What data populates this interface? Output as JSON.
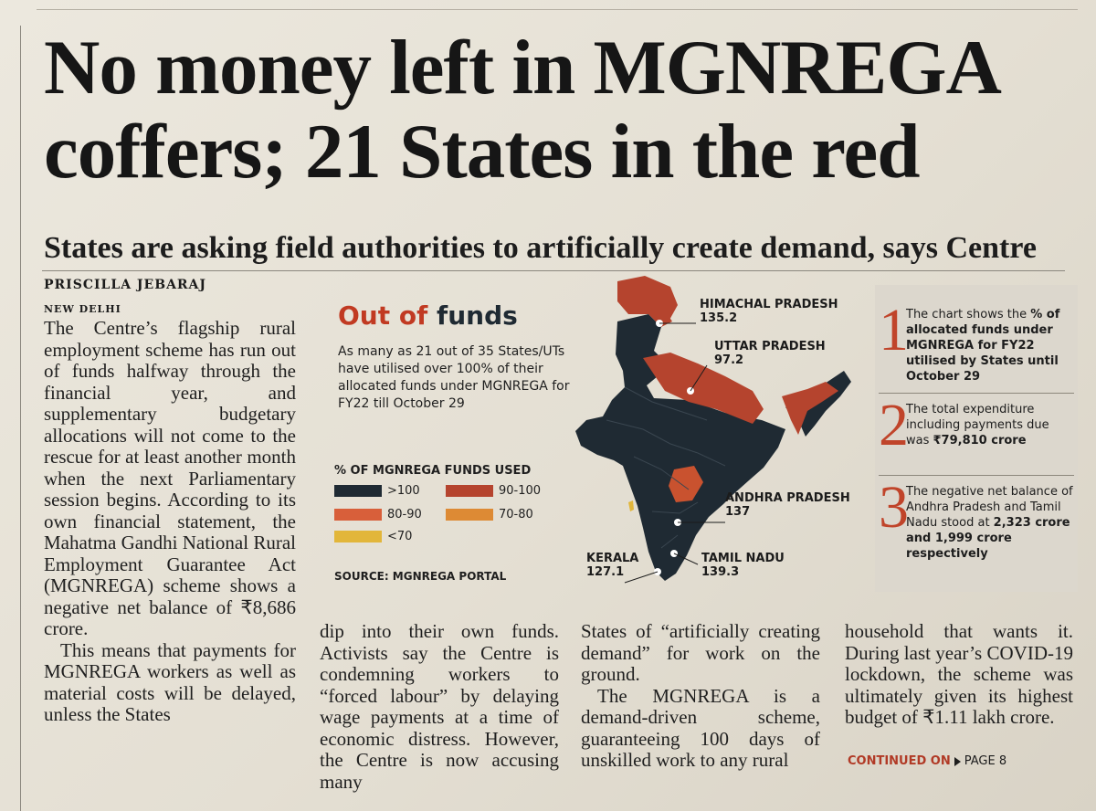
{
  "headline": "No money left in MGNREGA coffers; 21 States in the red",
  "subhead": "States are asking field authorities to artificially create demand, says Centre",
  "byline": "PRISCILLA JEBARAJ",
  "dateline": "NEW DELHI",
  "body": {
    "col1_p1": "The Centre’s flagship rural employment scheme has run out of funds halfway through the financial year, and supplementary budgetary allocations will not come to the rescue for at least another month when the next Parliamentary session begins. According to its own financial statement, the Mahatma Gandhi National Rural Employment Guarantee Act (MGNREGA) scheme shows a negative net balance of ₹8,686 crore.",
    "col1_p2": "This means that payments for MGNREGA workers as well as material costs will be delayed, unless the States",
    "col2": "dip into their own funds. Activists say the Centre is condemning workers to “forced labour” by delaying wage payments at a time of economic distress. However, the Centre is now accusing many",
    "col3_p1": "States of “artificially creating demand” for work on the ground.",
    "col3_p2": "The MGNREGA is a demand-driven scheme, guaranteeing 100 days of unskilled work to any rural",
    "col4": "household that wants it. During last year’s COVID-19 lockdown, the scheme was ultimately given its highest budget of ₹1.11 lakh crore."
  },
  "infographic": {
    "title_part1": "Out of",
    "title_part2": "funds",
    "description": "As many as 21 out of 35 States/UTs have utilised over 100% of their allocated funds under MGNREGA for FY22 till October 29",
    "legend_title": "% OF MGNREGA FUNDS USED",
    "legend": [
      {
        "label": ">100",
        "color": "#1f2a33"
      },
      {
        "label": "90-100",
        "color": "#b5442e"
      },
      {
        "label": "80-90",
        "color": "#d85f3a"
      },
      {
        "label": "70-80",
        "color": "#dd8a34"
      },
      {
        "label": "<70",
        "color": "#e2b63a"
      }
    ],
    "source": "SOURCE: MGNREGA PORTAL",
    "states": [
      {
        "name": "HIMACHAL PRADESH",
        "value": "135.2"
      },
      {
        "name": "UTTAR PRADESH",
        "value": "97.2"
      },
      {
        "name": "ANDHRA PRADESH",
        "value": "137"
      },
      {
        "name": "KERALA",
        "value": "127.1"
      },
      {
        "name": "TAMIL NADU",
        "value": "139.3"
      }
    ]
  },
  "notes": [
    {
      "num": "1",
      "text_plain": "The chart shows the ",
      "text_bold": "% of allocated funds under MGNREGA for FY22 utilised by States until October 29"
    },
    {
      "num": "2",
      "text_plain": "The total expenditure including payments due was ",
      "text_bold": "₹79,810 crore"
    },
    {
      "num": "3",
      "text_plain": "The negative net balance of Andhra Pradesh and Tamil Nadu stood at ",
      "text_bold": "2,323 crore and 1,999 crore respectively"
    }
  ],
  "continued": {
    "label": "CONTINUED ON",
    "page": "PAGE 8"
  }
}
